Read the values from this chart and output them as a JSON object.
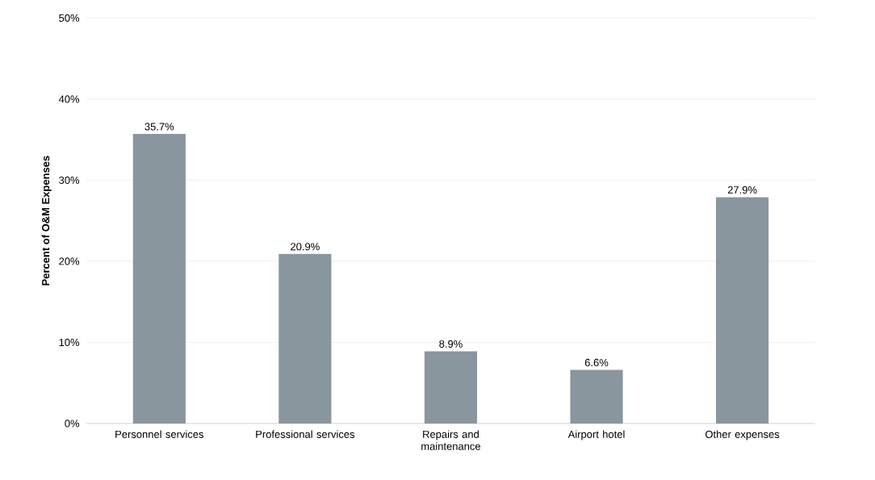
{
  "chart_data": {
    "type": "bar",
    "ylabel": "Percent of O&M Expenses",
    "categories": [
      "Personnel services",
      "Professional services",
      "Repairs and maintenance",
      "Airport hotel",
      "Other expenses"
    ],
    "values": [
      35.7,
      20.9,
      8.9,
      6.6,
      27.9
    ],
    "value_labels": [
      "35.7%",
      "20.9%",
      "8.9%",
      "6.6%",
      "27.9%"
    ],
    "color": "#89969d",
    "ylim": [
      0,
      50
    ],
    "yticks": [
      {
        "value": 0,
        "label": "0%"
      },
      {
        "value": 10,
        "label": "10%"
      },
      {
        "value": 20,
        "label": "20%"
      },
      {
        "value": 30,
        "label": "30%"
      },
      {
        "value": 40,
        "label": "40%"
      },
      {
        "value": 50,
        "label": "50%"
      }
    ],
    "grid": "y"
  }
}
